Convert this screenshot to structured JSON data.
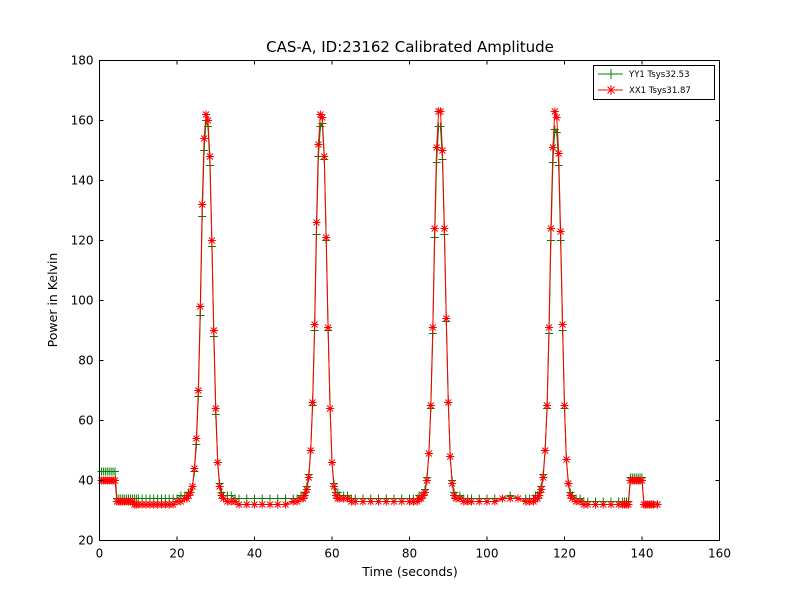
{
  "chart_data": {
    "type": "line",
    "title": "CAS-A, ID:23162 Calibrated Amplitude",
    "xlabel": "Time (seconds)",
    "ylabel": "Power in Kelvin",
    "xlim": [
      0,
      160
    ],
    "ylim": [
      20,
      180
    ],
    "xticks": [
      "0",
      "20",
      "40",
      "60",
      "80",
      "100",
      "120",
      "140",
      "160"
    ],
    "yticks": [
      "20",
      "40",
      "60",
      "80",
      "100",
      "120",
      "140",
      "160",
      "180"
    ],
    "grid": false,
    "legend_position": "top-right",
    "series": [
      {
        "name": "YY1 Tsys32.53",
        "color": "#008000",
        "marker": "plus",
        "x": [
          0.5,
          1,
          1.5,
          2,
          2.5,
          3,
          3.5,
          4,
          4.5,
          5,
          5.5,
          6,
          6.5,
          7,
          7.5,
          8,
          8.5,
          9,
          9.5,
          10,
          11,
          12,
          13,
          14,
          15,
          16,
          17,
          18,
          19,
          20,
          21,
          22,
          22.5,
          23,
          23.5,
          24,
          24.5,
          25,
          25.5,
          26,
          26.5,
          27,
          27.5,
          28,
          28.5,
          29,
          29.5,
          30,
          30.5,
          31,
          31.5,
          32,
          33,
          34,
          35,
          36,
          38,
          40,
          42,
          44,
          46,
          48,
          50,
          51,
          52,
          52.5,
          53,
          53.5,
          54,
          54.5,
          55,
          55.5,
          56,
          56.5,
          57,
          57.5,
          58,
          58.5,
          59,
          59.5,
          60,
          60.5,
          61,
          61.5,
          62,
          63,
          64,
          65,
          66,
          68,
          70,
          72,
          74,
          76,
          78,
          80,
          81,
          82,
          82.5,
          83,
          83.5,
          84,
          84.5,
          85,
          85.5,
          86,
          86.5,
          87,
          87.5,
          88,
          88.5,
          89,
          89.5,
          90,
          90.5,
          91,
          91.5,
          92,
          93,
          94,
          95,
          96,
          98,
          100,
          102,
          104,
          106,
          108,
          110,
          111,
          112,
          112.5,
          113,
          113.5,
          114,
          114.5,
          115,
          115.5,
          116,
          116.5,
          117,
          117.5,
          118,
          118.5,
          119,
          119.5,
          120,
          120.5,
          121,
          121.5,
          122,
          123,
          124,
          125,
          126,
          128,
          130,
          132,
          134,
          135,
          135.5,
          136,
          136.5,
          137,
          137.5,
          138,
          138.5,
          139,
          139.5,
          140,
          140.5,
          141,
          141.5,
          142,
          142.5,
          143,
          144
        ],
        "y": [
          43,
          43,
          43,
          43,
          43,
          43,
          43,
          43,
          34,
          34,
          34,
          34,
          34,
          34,
          34,
          34,
          34,
          34,
          34,
          34,
          34,
          34,
          34,
          34,
          34,
          34,
          34,
          34,
          34,
          34,
          35,
          35,
          35,
          36,
          36,
          38,
          43,
          52,
          68,
          95,
          128,
          150,
          160,
          158,
          145,
          118,
          88,
          62,
          46,
          39,
          36,
          35,
          35,
          35,
          34,
          34,
          34,
          34,
          34,
          34,
          34,
          34,
          34,
          34,
          35,
          35,
          36,
          38,
          42,
          50,
          65,
          90,
          122,
          148,
          158,
          159,
          147,
          120,
          90,
          64,
          46,
          39,
          36,
          36,
          35,
          35,
          35,
          34,
          34,
          34,
          34,
          34,
          34,
          34,
          34,
          34,
          34,
          34,
          35,
          35,
          35,
          37,
          41,
          49,
          64,
          89,
          121,
          146,
          158,
          158,
          147,
          122,
          93,
          66,
          48,
          40,
          36,
          35,
          35,
          34,
          34,
          34,
          34,
          34,
          34,
          34,
          35,
          34,
          34,
          34,
          34,
          35,
          35,
          36,
          38,
          42,
          50,
          64,
          89,
          120,
          146,
          157,
          156,
          145,
          120,
          90,
          64,
          47,
          39,
          36,
          35,
          34,
          34,
          33,
          33,
          33,
          33,
          33,
          33,
          33,
          33,
          33,
          33,
          41,
          41,
          41,
          41,
          41,
          41,
          41,
          32,
          32,
          32,
          32,
          32,
          32,
          32
        ]
      },
      {
        "name": "XX1 Tsys31.87",
        "color": "#ff0000",
        "marker": "star",
        "x": [
          0.5,
          1,
          1.5,
          2,
          2.5,
          3,
          3.5,
          4,
          4.5,
          5,
          5.5,
          6,
          6.5,
          7,
          7.5,
          8,
          8.5,
          9,
          9.5,
          10,
          11,
          12,
          13,
          14,
          15,
          16,
          17,
          18,
          19,
          20,
          21,
          22,
          22.5,
          23,
          23.5,
          24,
          24.5,
          25,
          25.5,
          26,
          26.5,
          27,
          27.5,
          28,
          28.5,
          29,
          29.5,
          30,
          30.5,
          31,
          31.5,
          32,
          33,
          34,
          35,
          36,
          38,
          40,
          42,
          44,
          46,
          48,
          50,
          51,
          52,
          52.5,
          53,
          53.5,
          54,
          54.5,
          55,
          55.5,
          56,
          56.5,
          57,
          57.5,
          58,
          58.5,
          59,
          59.5,
          60,
          60.5,
          61,
          61.5,
          62,
          63,
          64,
          65,
          66,
          68,
          70,
          72,
          74,
          76,
          78,
          80,
          81,
          82,
          82.5,
          83,
          83.5,
          84,
          84.5,
          85,
          85.5,
          86,
          86.5,
          87,
          87.5,
          88,
          88.5,
          89,
          89.5,
          90,
          90.5,
          91,
          91.5,
          92,
          93,
          94,
          95,
          96,
          98,
          100,
          102,
          104,
          106,
          108,
          110,
          111,
          112,
          112.5,
          113,
          113.5,
          114,
          114.5,
          115,
          115.5,
          116,
          116.5,
          117,
          117.5,
          118,
          118.5,
          119,
          119.5,
          120,
          120.5,
          121,
          121.5,
          122,
          123,
          124,
          125,
          126,
          128,
          130,
          132,
          134,
          135,
          135.5,
          136,
          136.5,
          137,
          137.5,
          138,
          138.5,
          139,
          139.5,
          140,
          140.5,
          141,
          141.5,
          142,
          142.5,
          143,
          144
        ],
        "y": [
          40,
          40,
          40,
          40,
          40,
          40,
          40,
          40,
          33,
          33,
          33,
          33,
          33,
          33,
          33,
          33,
          33,
          32,
          32,
          32,
          32,
          32,
          32,
          32,
          32,
          32,
          32,
          32,
          32,
          33,
          33,
          34,
          34,
          35,
          36,
          38,
          44,
          54,
          70,
          98,
          132,
          154,
          162,
          160,
          148,
          120,
          90,
          64,
          46,
          38,
          35,
          34,
          33,
          33,
          33,
          32,
          32,
          32,
          32,
          32,
          32,
          32,
          33,
          33,
          34,
          34,
          35,
          37,
          41,
          50,
          66,
          92,
          126,
          152,
          162,
          161,
          148,
          121,
          91,
          64,
          46,
          38,
          35,
          34,
          34,
          34,
          34,
          33,
          33,
          33,
          33,
          33,
          33,
          33,
          33,
          33,
          33,
          33,
          34,
          34,
          35,
          36,
          40,
          49,
          65,
          91,
          124,
          151,
          163,
          163,
          150,
          124,
          94,
          66,
          48,
          39,
          35,
          34,
          34,
          33,
          33,
          33,
          33,
          33,
          33,
          34,
          34,
          34,
          33,
          33,
          33,
          34,
          34,
          35,
          37,
          41,
          50,
          65,
          91,
          124,
          151,
          163,
          161,
          149,
          123,
          92,
          65,
          47,
          39,
          35,
          34,
          33,
          33,
          32,
          32,
          32,
          32,
          32,
          32,
          32,
          32,
          32,
          32,
          40,
          40,
          40,
          40,
          40,
          40,
          40,
          32,
          32,
          32,
          32,
          32,
          32,
          32
        ]
      }
    ]
  }
}
